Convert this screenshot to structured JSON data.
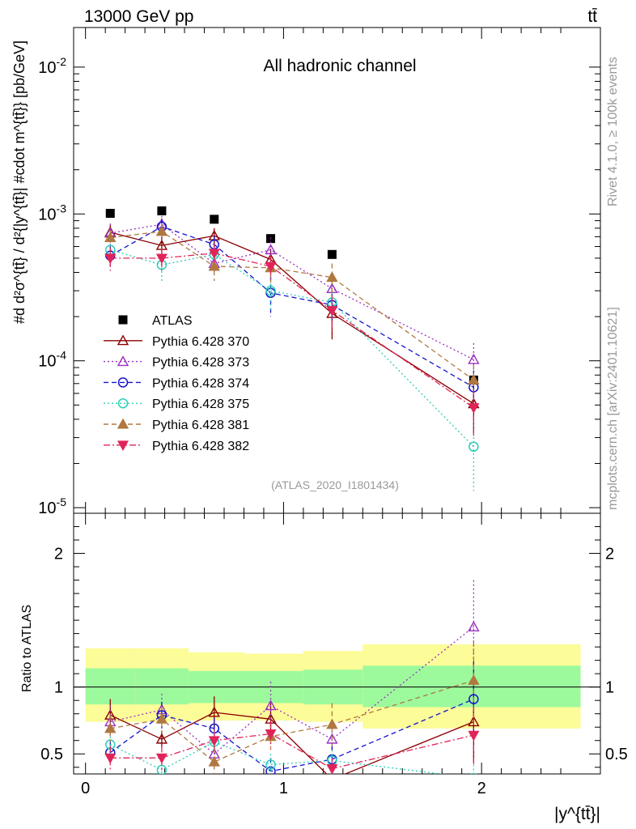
{
  "header": {
    "energy_label": "13000 GeV pp",
    "process_label": "tt̄"
  },
  "side_labels": {
    "rivet": "Rivet 4.1.0, ≥ 100k events",
    "mcplots": "mcplots.cern.ch [arXiv:2401.10621]"
  },
  "chart_data": [
    {
      "type": "scatter",
      "panel": "main",
      "title": "All hadronic channel",
      "watermark": "(ATLAS_2020_I1801434)",
      "ylabel": "#d d²σ^{tt̄} / d²{|y^{tt̄}| #cdot m^{tt̄}} [pb/GeV]",
      "yscale": "log",
      "ylim": [
        9.16e-06,
        0.0186
      ],
      "xlim": [
        -0.06,
        2.6
      ],
      "ytick_labels": [
        "10^-2",
        "10^-3",
        "10^-4",
        "10^-5"
      ],
      "x": [
        0.125,
        0.385,
        0.65,
        0.935,
        1.245,
        1.96
      ],
      "series": [
        {
          "name": "ATLAS",
          "marker": "square",
          "color": "#000000",
          "values": [
            0.00101,
            0.00105,
            0.00092,
            0.00068,
            0.00053,
            7.4e-05
          ]
        },
        {
          "name": "Pythia 6.428 370",
          "marker": "tri-up-open",
          "color": "#8B0000",
          "dash": "solid",
          "values": [
            0.00075,
            0.00061,
            0.00071,
            0.00049,
            0.00021,
            5.1e-05
          ],
          "err": [
            9e-05,
            9e-05,
            9e-05,
            9e-05,
            7e-05,
            2e-05
          ]
        },
        {
          "name": "Pythia 6.428 373",
          "marker": "tri-up-open",
          "color": "#9A30C0",
          "dash": "dotted",
          "values": [
            0.00074,
            0.00085,
            0.00046,
            0.00057,
            0.00031,
            0.000102
          ],
          "err": [
            0.00012,
            0.00012,
            7e-05,
            0.00012,
            6e-05,
            3e-05
          ]
        },
        {
          "name": "Pythia 6.428 374",
          "marker": "circle-open",
          "color": "#1515CC",
          "dash": "dashed",
          "values": [
            0.00052,
            0.00082,
            0.00062,
            0.00029,
            0.00024,
            6.6e-05
          ],
          "err": [
            9e-05,
            0.00011,
            9e-05,
            9e-05,
            6e-05,
            2e-05
          ]
        },
        {
          "name": "Pythia 6.428 375",
          "marker": "circle-open",
          "color": "#2ECDB8",
          "dash": "dotted",
          "values": [
            0.00057,
            0.00045,
            0.00053,
            0.0003,
            0.00025,
            2.6e-05
          ],
          "err": [
            9e-05,
            0.00011,
            9e-05,
            8e-05,
            6e-05,
            1.3e-05
          ]
        },
        {
          "name": "Pythia 6.428 381",
          "marker": "tri-up-filled",
          "color": "#B07840",
          "dash": "dashed",
          "values": [
            0.00069,
            0.00076,
            0.00044,
            0.00043,
            0.00037,
            7.4e-05
          ],
          "err": [
            9e-05,
            0.0001,
            9e-05,
            9e-05,
            9e-05,
            2e-05
          ]
        },
        {
          "name": "Pythia 6.428 382",
          "marker": "tri-down-filled",
          "color": "#E0245A",
          "dash": "dashdot",
          "values": [
            0.0005,
            0.0005,
            0.00054,
            0.00044,
            0.00022,
            4.8e-05
          ],
          "err": [
            9e-05,
            9e-05,
            9e-05,
            8e-05,
            6e-05,
            1.6e-05
          ]
        }
      ]
    },
    {
      "type": "scatter",
      "panel": "ratio",
      "ylabel": "Ratio to ATLAS",
      "xlabel": "|y^{tt̄}|",
      "ylim": [
        0.35,
        2.3
      ],
      "xlim": [
        -0.06,
        2.6
      ],
      "xtick_labels": [
        "0",
        "1",
        "2"
      ],
      "ytick_labels": [
        "2",
        "1",
        "0.5"
      ],
      "bands": {
        "bin_edges": [
          0.0,
          0.25,
          0.52,
          0.8,
          1.1,
          1.4,
          2.5
        ],
        "inner_lo": [
          0.87,
          0.87,
          0.88,
          0.88,
          0.87,
          0.85
        ],
        "inner_hi": [
          1.14,
          1.14,
          1.12,
          1.12,
          1.13,
          1.16
        ],
        "outer_lo": [
          0.74,
          0.74,
          0.75,
          0.75,
          0.74,
          0.69
        ],
        "outer_hi": [
          1.29,
          1.29,
          1.26,
          1.25,
          1.27,
          1.32
        ],
        "inner_color": "#9CFA9C",
        "outer_color": "#FCFC98"
      },
      "x": [
        0.125,
        0.385,
        0.65,
        0.935,
        1.245,
        1.96
      ],
      "series": [
        {
          "name": "Pythia 6.428 370",
          "values": [
            0.79,
            0.61,
            0.81,
            0.76,
            0.31,
            0.74
          ],
          "err": [
            0.12,
            0.06,
            0.12,
            0.12,
            0.07,
            0.3
          ]
        },
        {
          "name": "Pythia 6.428 373",
          "values": [
            0.74,
            0.83,
            0.5,
            0.86,
            0.61,
            1.45
          ],
          "err": [
            0.12,
            0.12,
            0.1,
            0.18,
            0.09,
            0.35
          ]
        },
        {
          "name": "Pythia 6.428 374",
          "values": [
            0.51,
            0.79,
            0.69,
            0.37,
            0.46,
            0.91
          ],
          "err": [
            0.09,
            0.1,
            0.08,
            0.1,
            0.1,
            0.28
          ]
        },
        {
          "name": "Pythia 6.428 375",
          "values": [
            0.57,
            0.38,
            0.59,
            0.42,
            0.45,
            0.32
          ],
          "err": [
            0.09,
            0.08,
            0.08,
            0.08,
            0.08,
            0.1
          ]
        },
        {
          "name": "Pythia 6.428 381",
          "values": [
            0.69,
            0.76,
            0.44,
            0.63,
            0.72,
            1.05
          ],
          "err": [
            0.1,
            0.1,
            0.1,
            0.1,
            0.16,
            0.3
          ]
        },
        {
          "name": "Pythia 6.428 382",
          "values": [
            0.47,
            0.47,
            0.6,
            0.65,
            0.39,
            0.64
          ],
          "err": [
            0.09,
            0.09,
            0.08,
            0.1,
            0.08,
            0.22
          ]
        }
      ]
    }
  ]
}
